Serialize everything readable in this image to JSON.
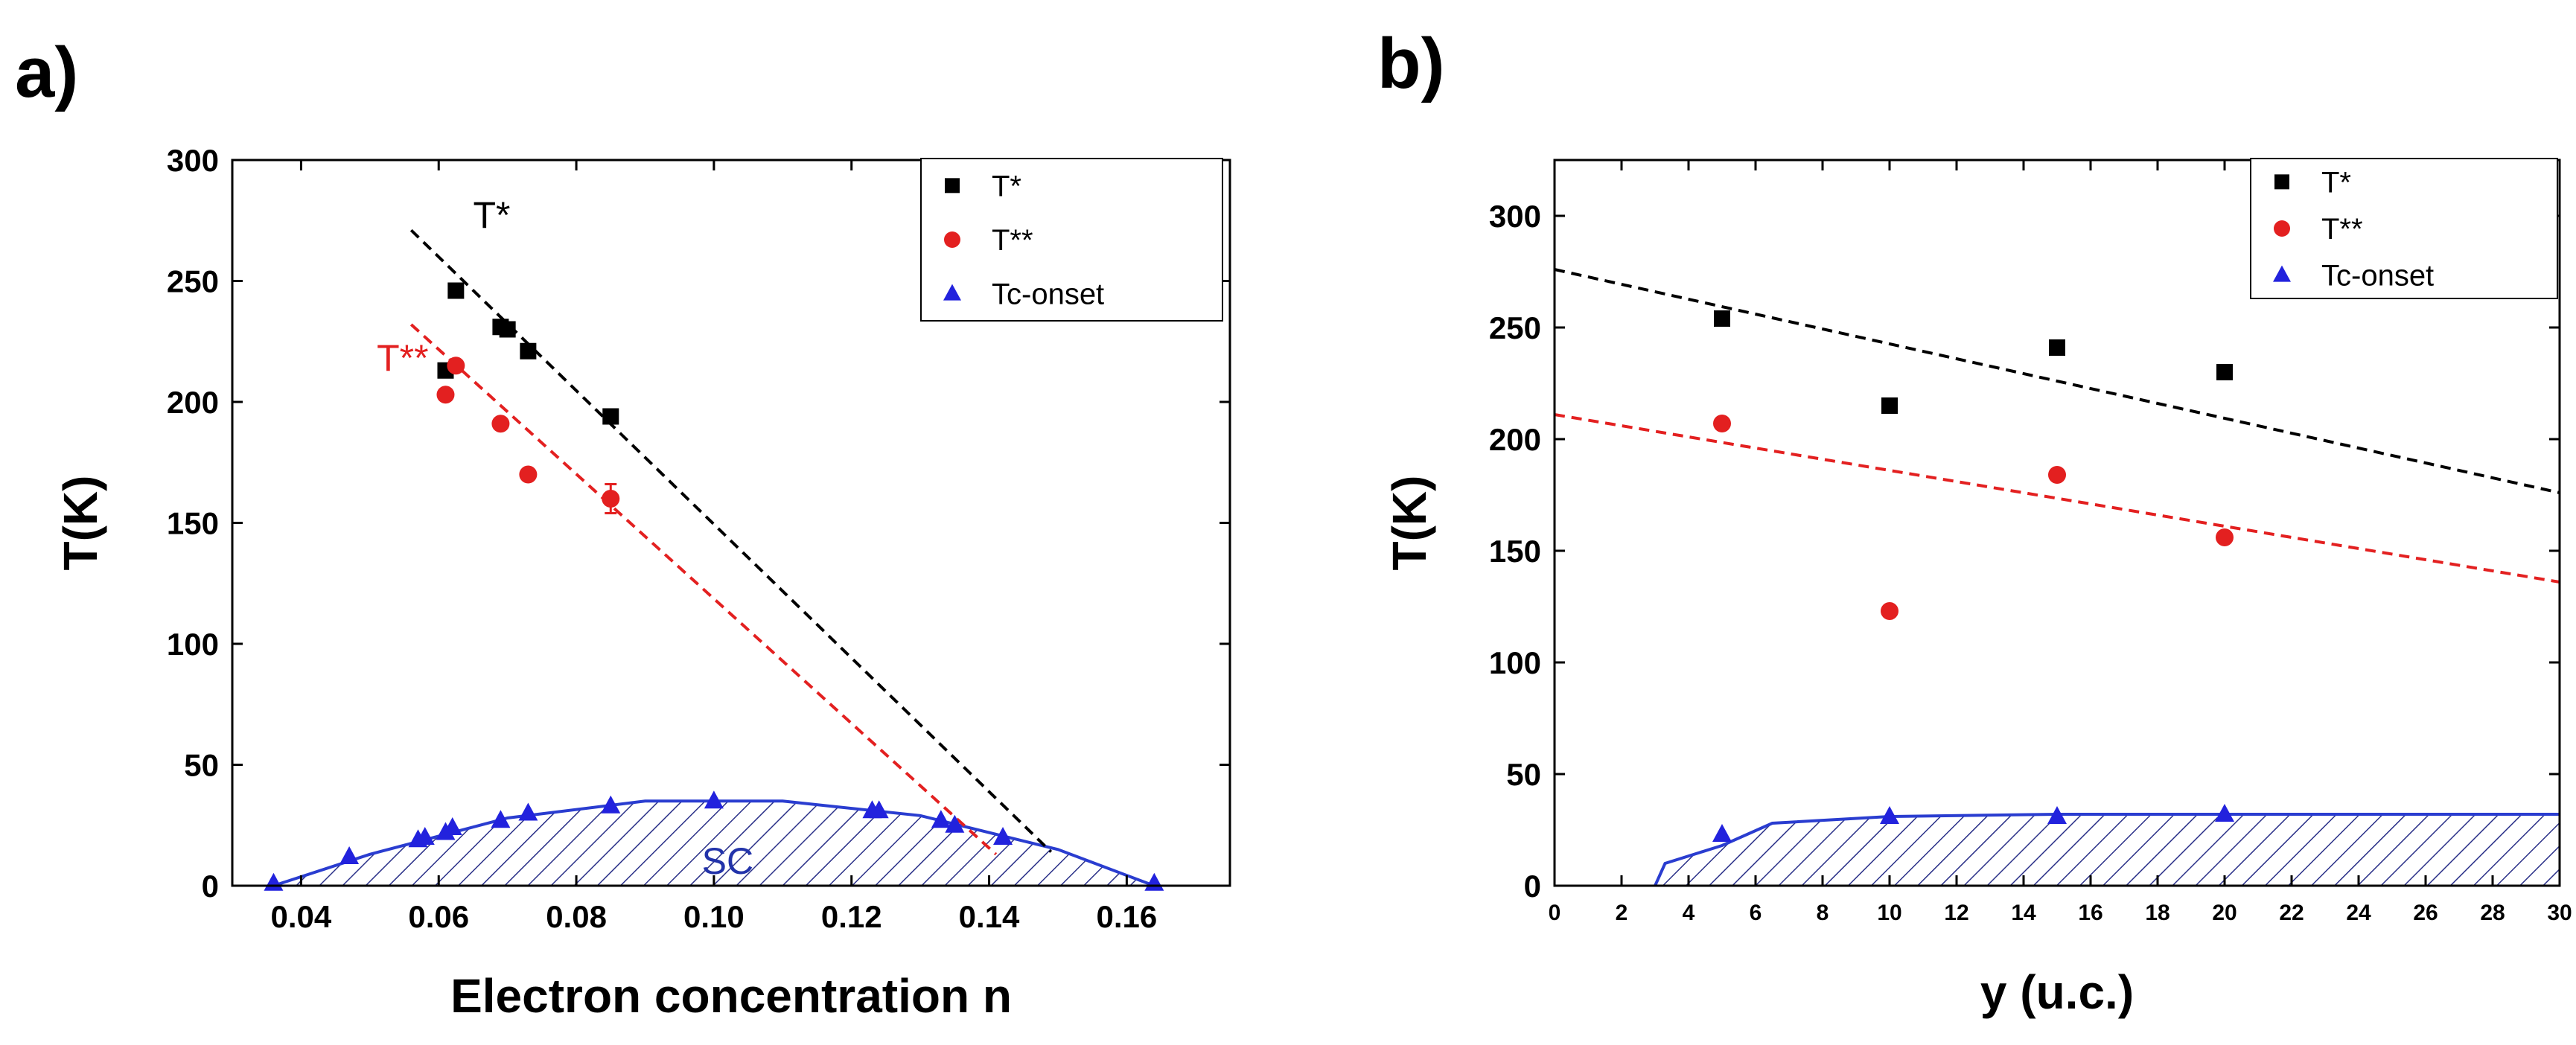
{
  "chart_data": [
    {
      "panel": "a)",
      "type": "scatter",
      "xlabel": "Electron concentration n",
      "ylabel": "T(K)",
      "xlim": [
        0.03,
        0.175
      ],
      "ylim": [
        0,
        300
      ],
      "xticks": [
        0.04,
        0.06,
        0.08,
        0.1,
        0.12,
        0.14,
        0.16
      ],
      "xtick_labels": [
        "0.04",
        "0.06",
        "0.08",
        "0.10",
        "0.12",
        "0.14",
        "0.16"
      ],
      "yticks": [
        0,
        50,
        100,
        150,
        200,
        250,
        300
      ],
      "ytick_labels": [
        "0",
        "50",
        "100",
        "150",
        "200",
        "250",
        "300"
      ],
      "legend": {
        "position": "top-right",
        "entries": [
          "T*",
          "T**",
          "Tc-onset"
        ]
      },
      "series": [
        {
          "name": "T*",
          "marker": "square",
          "color": "#000000",
          "x": [
            0.061,
            0.0625,
            0.069,
            0.07,
            0.073,
            0.085
          ],
          "y": [
            213,
            246,
            231,
            230,
            221,
            194
          ]
        },
        {
          "name": "T**",
          "marker": "circle",
          "color": "#e32020",
          "x": [
            0.061,
            0.0625,
            0.069,
            0.073,
            0.085
          ],
          "y": [
            203,
            215,
            191,
            170,
            160
          ],
          "error_bar_index": 4,
          "error": 6
        },
        {
          "name": "Tc-onset",
          "marker": "triangle",
          "color": "#2222dd",
          "x": [
            0.036,
            0.047,
            0.057,
            0.058,
            0.061,
            0.062,
            0.069,
            0.073,
            0.085,
            0.1,
            0.123,
            0.124,
            0.133,
            0.135,
            0.142,
            0.164
          ],
          "y": [
            1,
            12,
            19,
            20,
            22,
            24,
            27,
            30,
            33,
            35,
            31,
            31,
            27,
            25,
            20,
            1
          ]
        }
      ],
      "fit_lines": [
        {
          "name": "T* fit",
          "color": "#000000",
          "style": "dashed",
          "x": [
            0.056,
            0.149
          ],
          "y": [
            271,
            14
          ]
        },
        {
          "name": "T** fit",
          "color": "#e32020",
          "style": "dashed",
          "x": [
            0.056,
            0.141
          ],
          "y": [
            232,
            13
          ]
        }
      ],
      "sc_dome": {
        "x": [
          0.036,
          0.05,
          0.07,
          0.09,
          0.1,
          0.11,
          0.13,
          0.15,
          0.164
        ],
        "y": [
          0,
          13,
          28,
          35,
          35,
          35,
          29,
          15,
          0
        ]
      },
      "annotations": [
        {
          "text": "T*",
          "x": 0.065,
          "y": 272,
          "color": "#000000"
        },
        {
          "text": "T**",
          "x": 0.051,
          "y": 213,
          "color": "#e32020"
        },
        {
          "text": "SC",
          "x": 0.102,
          "y": 5,
          "color": "#2233aa"
        }
      ]
    },
    {
      "panel": "b)",
      "type": "scatter",
      "xlabel": "y  (u.c.)",
      "ylabel": "T(K)",
      "xlim": [
        0,
        30
      ],
      "ylim": [
        0,
        325
      ],
      "xticks": [
        0,
        2,
        4,
        6,
        8,
        10,
        12,
        14,
        16,
        18,
        20,
        22,
        24,
        26,
        28,
        30
      ],
      "xtick_labels": [
        "0",
        "2",
        "4",
        "6",
        "8",
        "10",
        "12",
        "14",
        "16",
        "18",
        "20",
        "22",
        "24",
        "26",
        "28",
        "30"
      ],
      "yticks": [
        0,
        50,
        100,
        150,
        200,
        250,
        300
      ],
      "ytick_labels": [
        "0",
        "50",
        "100",
        "150",
        "200",
        "250",
        "300"
      ],
      "legend": {
        "position": "top-right",
        "entries": [
          "T*",
          "T**",
          "Tc-onset"
        ]
      },
      "series": [
        {
          "name": "T*",
          "marker": "square",
          "color": "#000000",
          "x": [
            5,
            10,
            15,
            20
          ],
          "y": [
            254,
            215,
            241,
            230
          ]
        },
        {
          "name": "T**",
          "marker": "circle",
          "color": "#e32020",
          "x": [
            5,
            10,
            15,
            20
          ],
          "y": [
            207,
            123,
            184,
            156
          ]
        },
        {
          "name": "Tc-onset",
          "marker": "triangle",
          "color": "#2222dd",
          "x": [
            5,
            10,
            15,
            20
          ],
          "y": [
            23,
            31,
            31,
            32
          ]
        }
      ],
      "fit_lines": [
        {
          "name": "T* fit",
          "color": "#000000",
          "style": "dashed",
          "x": [
            0,
            30
          ],
          "y": [
            276,
            176
          ]
        },
        {
          "name": "T** fit",
          "color": "#e32020",
          "style": "dashed",
          "x": [
            0,
            30
          ],
          "y": [
            211,
            136
          ]
        }
      ],
      "sc_region": {
        "x": [
          3,
          3.3,
          5,
          6.5,
          10,
          15,
          20,
          30
        ],
        "y": [
          0,
          10,
          18,
          28,
          31,
          32,
          32,
          32
        ]
      },
      "annotations": []
    }
  ]
}
